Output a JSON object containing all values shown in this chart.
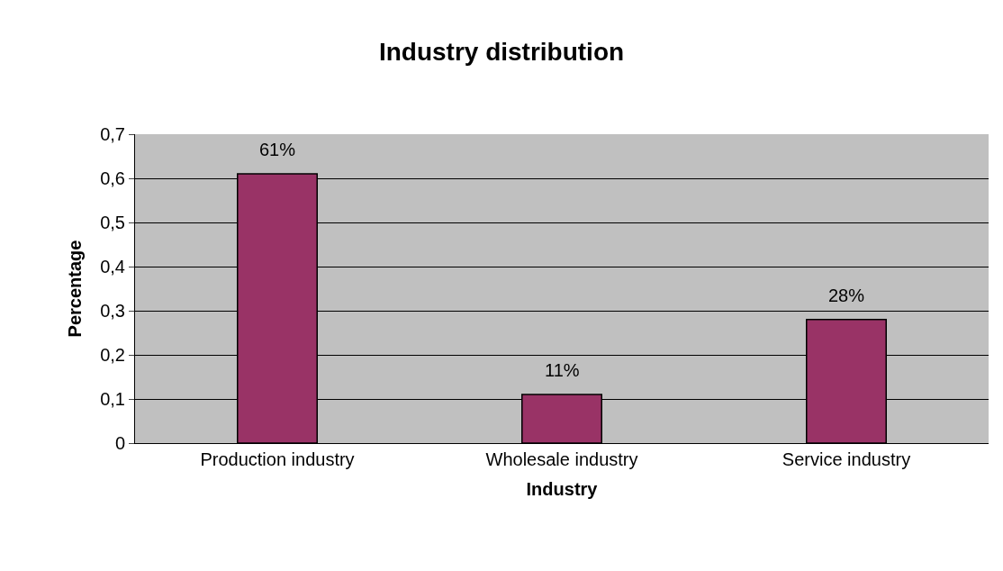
{
  "chart_data": {
    "type": "bar",
    "title": "Industry distribution",
    "xlabel": "Industry",
    "ylabel": "Percentage",
    "categories": [
      "Production industry",
      "Wholesale industry",
      "Service industry"
    ],
    "values": [
      0.61,
      0.11,
      0.28
    ],
    "value_labels": [
      "61%",
      "11%",
      "28%"
    ],
    "color": "#993366",
    "ylim": [
      0,
      0.7
    ],
    "yticks": [
      0,
      {
        "value": 0.1,
        "label": "0,1"
      },
      {
        "value": 0.2,
        "label": "0,2"
      },
      {
        "value": 0.3,
        "label": "0,3"
      },
      {
        "value": 0.4,
        "label": "0,4"
      },
      {
        "value": 0.5,
        "label": "0,5"
      },
      {
        "value": 0.6,
        "label": "0,6"
      },
      {
        "value": 0.7,
        "label": "0,7"
      }
    ],
    "grid": "y",
    "legend": false
  }
}
